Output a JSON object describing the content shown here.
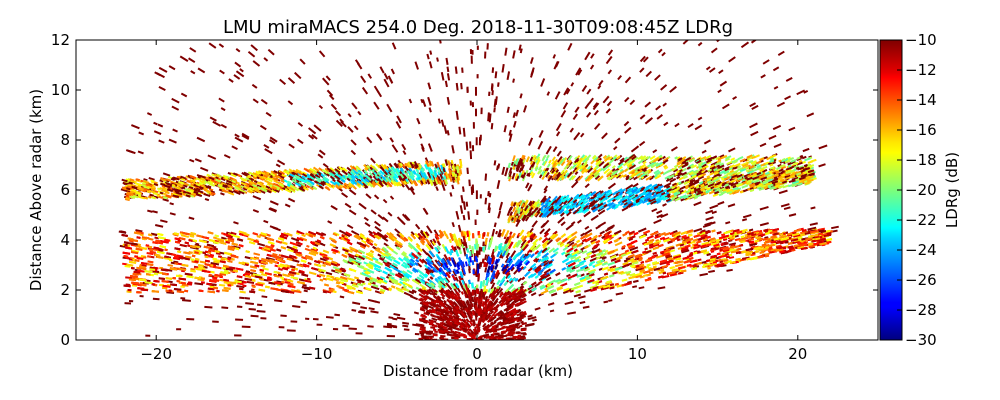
{
  "chart_data": {
    "type": "heatmap",
    "title": "LMU miraMACS 254.0 Deg. 2018-11-30T09:08:45Z  LDRg",
    "xlabel": "Distance from radar (km)",
    "ylabel": "Distance Above radar  (km)",
    "colorbar_label": "LDRg (dB)",
    "xlim": [
      -25,
      25
    ],
    "ylim": [
      0,
      12
    ],
    "x_ticks": [
      -20,
      -10,
      0,
      10,
      20
    ],
    "x_tick_labels": [
      "−20",
      "−10",
      "0",
      "10",
      "20"
    ],
    "y_ticks": [
      0,
      2,
      4,
      6,
      8,
      10,
      12
    ],
    "y_tick_labels": [
      "0",
      "2",
      "4",
      "6",
      "8",
      "10",
      "12"
    ],
    "colorbar_range": [
      -30,
      -10
    ],
    "colorbar_ticks": [
      -30,
      -28,
      -26,
      -24,
      -22,
      -20,
      -18,
      -16,
      -14,
      -12,
      -10
    ],
    "colorbar_tick_labels": [
      "−30",
      "−28",
      "−26",
      "−24",
      "−22",
      "−20",
      "−18",
      "−16",
      "−14",
      "−12",
      "−10"
    ],
    "colormap": "jet",
    "grid": false,
    "scan_azimuth_deg": 254.0,
    "echo_regions": [
      {
        "name": "main cloud layer",
        "x_range": [
          -22,
          22
        ],
        "height_range": [
          1.8,
          4.5
        ],
        "core_x": [
          -6,
          8
        ],
        "core_height": [
          2,
          3.8
        ],
        "core_ldr": -28,
        "edge_ldr": -12
      },
      {
        "name": "upper left layer",
        "x_range": [
          -22,
          -1
        ],
        "height_range": [
          5.6,
          7.0
        ],
        "ldr_range": [
          -22,
          -12
        ]
      },
      {
        "name": "upper right layer",
        "x_range": [
          2,
          21
        ],
        "height_range": [
          5.0,
          7.5
        ],
        "ldr_range": [
          -24,
          -12
        ]
      },
      {
        "name": "near-radar clutter",
        "x_range": [
          -4,
          3
        ],
        "height_range": [
          0,
          2
        ],
        "ldr": -10
      },
      {
        "name": "scattered noise",
        "x_range": [
          -22,
          22
        ],
        "height_range": [
          0,
          12
        ],
        "ldr": -10
      }
    ]
  }
}
